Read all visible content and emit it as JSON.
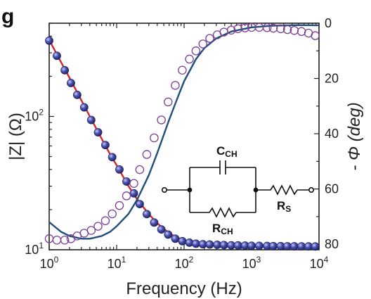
{
  "panel_label": "g",
  "chart_data": {
    "type": "scatter",
    "xlabel": "Frequency (Hz)",
    "xscale": "log",
    "xlim": [
      1,
      10000
    ],
    "x_tick_labels": [
      {
        "base": "10",
        "exp": "0"
      },
      {
        "base": "10",
        "exp": "1"
      },
      {
        "base": "10",
        "exp": "2"
      },
      {
        "base": "10",
        "exp": "3"
      },
      {
        "base": "10",
        "exp": "4"
      }
    ],
    "y_left": {
      "label": "|Z| (Ω)",
      "scale": "log",
      "lim": [
        10,
        500
      ],
      "tick_labels": [
        {
          "value": 10,
          "base": "10",
          "exp": "1"
        },
        {
          "value": 100,
          "base": "10",
          "exp": "2"
        }
      ]
    },
    "y_right": {
      "label": "- Φ (deg)",
      "lim": [
        0,
        82
      ],
      "inverted": true,
      "tick_labels": [
        "0",
        "20",
        "40",
        "60",
        "80"
      ]
    },
    "grid": false,
    "series": [
      {
        "role": "|Z| measured",
        "marker": "filled-sphere",
        "axis": "left",
        "color": "#3a3f8f",
        "x": [
          1,
          1.3,
          1.7,
          2.1,
          2.6,
          3.3,
          4.2,
          5.3,
          6.8,
          8.6,
          11,
          14,
          18,
          22,
          28,
          36,
          46,
          58,
          74,
          94,
          120,
          150,
          190,
          240,
          310,
          390,
          500,
          630,
          800,
          1000,
          1300,
          1700,
          2100,
          2700,
          3400,
          4300,
          5500,
          7000,
          8800
        ],
        "y": [
          370,
          285,
          222,
          178,
          145,
          117,
          94,
          76,
          61,
          49.5,
          40,
          32.5,
          26.5,
          22,
          18.5,
          16,
          14.2,
          13,
          12.1,
          11.6,
          11.3,
          11.1,
          11.0,
          10.95,
          10.9,
          10.85,
          10.8,
          10.78,
          10.75,
          10.72,
          10.7,
          10.68,
          10.66,
          10.65,
          10.63,
          10.62,
          10.61,
          10.6,
          10.59
        ]
      },
      {
        "role": "phase measured",
        "marker": "open-circle",
        "axis": "right",
        "color": "#7b3f98",
        "x": [
          1,
          1.3,
          1.7,
          2.1,
          2.6,
          3.3,
          4.2,
          5.3,
          6.8,
          8.6,
          11,
          14,
          18,
          22,
          28,
          36,
          46,
          58,
          74,
          94,
          120,
          150,
          190,
          240,
          310,
          390,
          500,
          630,
          800,
          1000,
          1300,
          1700,
          2100,
          2700,
          3400,
          4300,
          5500,
          7000,
          8800
        ],
        "y": [
          78,
          78.5,
          78.5,
          78,
          77,
          76,
          75,
          73.5,
          71.5,
          69,
          66,
          62.5,
          58,
          53,
          47.5,
          41.5,
          35,
          28.5,
          22.5,
          17,
          13,
          10,
          7.5,
          5.5,
          4.2,
          3.2,
          2.5,
          2.0,
          1.7,
          1.5,
          1.5,
          1.6,
          1.8,
          2.0,
          2.3,
          2.6,
          3.0,
          3.6,
          4.5
        ]
      },
      {
        "role": "|Z| fit",
        "marker": "line",
        "axis": "left",
        "color": "#d62728",
        "x": [
          1,
          1.5,
          2,
          3,
          4,
          6,
          8,
          10,
          15,
          20,
          30,
          40,
          60,
          80,
          100,
          150,
          200,
          300,
          500,
          1000,
          2000,
          5000,
          10000
        ],
        "y": [
          375,
          255,
          195,
          132,
          100,
          68,
          52,
          43,
          30,
          24,
          18.5,
          15.8,
          13.3,
          12.3,
          11.8,
          11.2,
          11.0,
          10.85,
          10.75,
          10.7,
          10.65,
          10.6,
          10.6
        ]
      },
      {
        "role": "phase fit",
        "marker": "line",
        "axis": "right",
        "color": "#1f4e79",
        "x": [
          1,
          1.5,
          2,
          3,
          4,
          6,
          8,
          10,
          15,
          20,
          30,
          40,
          60,
          80,
          100,
          150,
          200,
          300,
          500,
          1000,
          2000,
          5000,
          10000
        ],
        "y": [
          72,
          75.5,
          77,
          78,
          78,
          77,
          75.5,
          73.5,
          69,
          64,
          55,
          47,
          35,
          27,
          21,
          13,
          9,
          5.5,
          3,
          1.5,
          0.9,
          0.7,
          0.8
        ]
      }
    ],
    "annotations": {
      "circuit": {
        "components": [
          {
            "id": "cch",
            "base": "C",
            "sub": "CH"
          },
          {
            "id": "rch",
            "base": "R",
            "sub": "CH"
          },
          {
            "id": "rs",
            "base": "R",
            "sub": "S"
          }
        ]
      }
    }
  }
}
